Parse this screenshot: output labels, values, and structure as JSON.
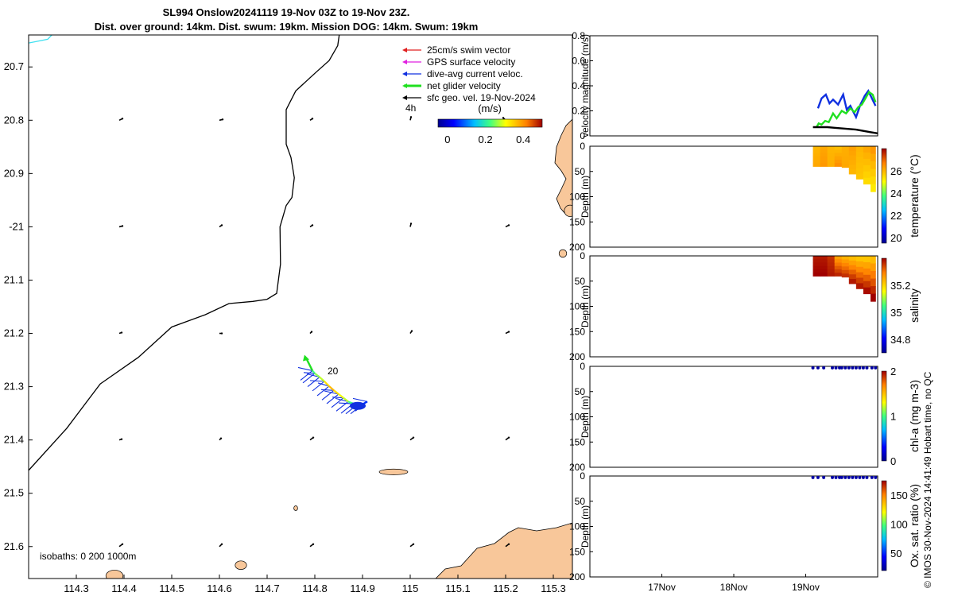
{
  "title": {
    "line1": "SL994 Onslow20241119 19-Nov 03Z to 19-Nov 23Z.",
    "line2": "Dist. over ground: 14km. Dist. swum: 19km. Mission DOG: 14km. Swum: 19km"
  },
  "credit": "© IMOS 30-Nov-2024 14:41:49 Hobart time, no QC",
  "colors": {
    "land": "#f8c79a",
    "coast": "#000000",
    "isobath_cyan": "#3fe0f0",
    "swim": "#e02020",
    "gps": "#e020e0",
    "dive_avg": "#1030e0",
    "net": "#20e020",
    "geo": "#000000"
  },
  "map": {
    "legend": [
      {
        "label": "25cm/s swim vector",
        "color": "#e02020"
      },
      {
        "label": "GPS surface velocity",
        "color": "#e020e0"
      },
      {
        "label": "dive-avg current veloc.",
        "color": "#1030e0"
      },
      {
        "label": "net glider velocity",
        "color": "#20e020"
      },
      {
        "label": "sfc geo. vel. 19-Nov-2024",
        "color": "#000000"
      }
    ],
    "scale_label": "4h",
    "colorbar": {
      "title": "(m/s)",
      "ticks": [
        "0",
        "0.2",
        "0.4"
      ],
      "range": [
        -0.05,
        0.5
      ]
    },
    "track_label": "20",
    "isobaths_label": "isobaths: 0   200  1000m",
    "coast_line": [
      [
        114.2,
        -21.457
      ],
      [
        114.28,
        -21.378
      ],
      [
        114.35,
        -21.295
      ],
      [
        114.43,
        -21.245
      ],
      [
        114.5,
        -21.188
      ],
      [
        114.57,
        -21.165
      ],
      [
        114.62,
        -21.144
      ],
      [
        114.67,
        -21.14
      ],
      [
        114.7,
        -21.136
      ],
      [
        114.72,
        -21.125
      ],
      [
        114.728,
        -21.07
      ],
      [
        114.727,
        -21.0
      ],
      [
        114.74,
        -20.96
      ],
      [
        114.752,
        -20.945
      ],
      [
        114.757,
        -20.908
      ],
      [
        114.75,
        -20.87
      ],
      [
        114.74,
        -20.845
      ],
      [
        114.74,
        -20.78
      ],
      [
        114.76,
        -20.745
      ],
      [
        114.8,
        -20.712
      ],
      [
        114.83,
        -20.688
      ],
      [
        114.848,
        -20.66
      ],
      [
        114.852,
        -20.635
      ]
    ],
    "cyan_line": [
      [
        114.2,
        -20.655
      ],
      [
        114.24,
        -20.648
      ],
      [
        114.27,
        -20.62
      ]
    ],
    "islands": [
      {
        "cx": 114.965,
        "cy": -21.46,
        "rx": 0.03,
        "ry": 0.006
      },
      {
        "cx": 114.38,
        "cy": -21.655,
        "rx": 0.018,
        "ry": 0.012
      },
      {
        "cx": 114.645,
        "cy": -21.635,
        "rx": 0.012,
        "ry": 0.009
      },
      {
        "cx": 114.76,
        "cy": -21.528,
        "rx": 0.004,
        "ry": 0.005
      },
      {
        "cx": 115.335,
        "cy": -20.97,
        "rx": 0.012,
        "ry": 0.012
      },
      {
        "cx": 115.32,
        "cy": -21.05,
        "rx": 0.008,
        "ry": 0.008
      }
    ],
    "geo_arrows": [
      {
        "lon": 114.39,
        "lat": -20.8,
        "u": 0.4,
        "v": 0.2
      },
      {
        "lon": 114.6,
        "lat": -20.8,
        "u": 0.4,
        "v": 0.1
      },
      {
        "lon": 114.79,
        "lat": -20.8,
        "u": 0.3,
        "v": 0.2
      },
      {
        "lon": 115.0,
        "lat": -20.8,
        "u": 0.1,
        "v": 0.4
      },
      {
        "lon": 115.2,
        "lat": -20.8,
        "u": -0.3,
        "v": 0.3
      },
      {
        "lon": 114.39,
        "lat": -21.0,
        "u": 0.4,
        "v": 0.1
      },
      {
        "lon": 114.6,
        "lat": -21.0,
        "u": 0.3,
        "v": 0.2
      },
      {
        "lon": 114.79,
        "lat": -21.0,
        "u": 0.3,
        "v": 0.2
      },
      {
        "lon": 115.0,
        "lat": -21.0,
        "u": 0.1,
        "v": 0.4
      },
      {
        "lon": 115.2,
        "lat": -21.0,
        "u": 0.4,
        "v": 0.2
      },
      {
        "lon": 114.39,
        "lat": -21.2,
        "u": 0.3,
        "v": 0.1
      },
      {
        "lon": 114.6,
        "lat": -21.2,
        "u": 0.3,
        "v": 0.0
      },
      {
        "lon": 114.79,
        "lat": -21.2,
        "u": 0.2,
        "v": 0.2
      },
      {
        "lon": 115.0,
        "lat": -21.2,
        "u": 0.2,
        "v": 0.3
      },
      {
        "lon": 115.2,
        "lat": -21.2,
        "u": 0.4,
        "v": 0.2
      },
      {
        "lon": 114.39,
        "lat": -21.4,
        "u": 0.3,
        "v": 0.1
      },
      {
        "lon": 114.6,
        "lat": -21.4,
        "u": 0.2,
        "v": 0.2
      },
      {
        "lon": 114.79,
        "lat": -21.4,
        "u": 0.4,
        "v": 0.3
      },
      {
        "lon": 115.0,
        "lat": -21.4,
        "u": 0.4,
        "v": 0.3
      },
      {
        "lon": 115.2,
        "lat": -21.4,
        "u": 0.4,
        "v": 0.3
      },
      {
        "lon": 114.39,
        "lat": -21.6,
        "u": 0.4,
        "v": 0.3
      },
      {
        "lon": 114.6,
        "lat": -21.6,
        "u": 0.3,
        "v": 0.3
      },
      {
        "lon": 114.79,
        "lat": -21.6,
        "u": 0.4,
        "v": 0.3
      },
      {
        "lon": 115.0,
        "lat": -21.6,
        "u": 0.4,
        "v": 0.3
      },
      {
        "lon": 115.2,
        "lat": -21.6,
        "u": 0.4,
        "v": 0.3
      }
    ]
  },
  "chart_data": [
    {
      "type": "scatter",
      "name": "glider-track-map",
      "xlim": [
        114.2,
        115.34
      ],
      "ylim": [
        -21.66,
        -20.64
      ],
      "x_ticks": [
        114.3,
        114.4,
        114.5,
        114.6,
        114.7,
        114.8,
        114.9,
        115.0,
        115.1,
        115.2,
        115.3
      ],
      "x_tick_labels": [
        "114.3",
        "114.4",
        "114.5",
        "114.6",
        "114.7",
        "114.8",
        "114.9",
        "115",
        "115.1",
        "115.2",
        "115.3"
      ],
      "y_ticks": [
        -20.7,
        -20.8,
        -20.9,
        -21.0,
        -21.1,
        -21.2,
        -21.3,
        -21.4,
        -21.5,
        -21.6
      ],
      "y_tick_labels": [
        "20.7",
        "20.8",
        "20.9",
        "-21",
        "21.1",
        "21.2",
        "21.3",
        "21.4",
        "21.5",
        "21.6"
      ],
      "track": {
        "lon": [
          114.91,
          114.9,
          114.89,
          114.88,
          114.87,
          114.86,
          114.85,
          114.84,
          114.83,
          114.82,
          114.81,
          114.8,
          114.795
        ],
        "lat": [
          -21.328,
          -21.333,
          -21.333,
          -21.332,
          -21.328,
          -21.321,
          -21.314,
          -21.307,
          -21.299,
          -21.29,
          -21.282,
          -21.275,
          -21.27
        ],
        "speed": [
          0.1,
          0.12,
          0.18,
          0.25,
          0.3,
          0.32,
          0.35,
          0.38,
          0.35,
          0.3,
          0.28,
          0.25,
          0.22
        ]
      }
    },
    {
      "type": "line",
      "name": "velocity-magnitude",
      "ylabel": "velocity magnitude (m/s)",
      "ylim": [
        0,
        0.8
      ],
      "y_ticks": [
        0,
        0.2,
        0.4,
        0.6,
        0.8
      ],
      "xlim": [
        16.0,
        20.0
      ],
      "series": [
        {
          "color": "#1030e0",
          "x": [
            19.17,
            19.22,
            19.28,
            19.33,
            19.38,
            19.45,
            19.52,
            19.57,
            19.62,
            19.7,
            19.76,
            19.82,
            19.87,
            19.92,
            19.97
          ],
          "values": [
            0.22,
            0.3,
            0.33,
            0.26,
            0.29,
            0.25,
            0.33,
            0.21,
            0.24,
            0.15,
            0.25,
            0.32,
            0.36,
            0.3,
            0.24
          ]
        },
        {
          "color": "#20e020",
          "x": [
            19.15,
            19.18,
            19.22,
            19.27,
            19.32,
            19.38,
            19.43,
            19.5,
            19.56,
            19.62,
            19.68,
            19.73,
            19.78,
            19.83,
            19.88,
            19.93,
            19.97
          ],
          "values": [
            0.07,
            0.1,
            0.09,
            0.12,
            0.11,
            0.18,
            0.14,
            0.2,
            0.18,
            0.22,
            0.19,
            0.23,
            0.25,
            0.3,
            0.35,
            0.33,
            0.27
          ]
        },
        {
          "color": "#000000",
          "x": [
            19.1,
            19.2,
            19.3,
            19.4,
            19.5,
            19.6,
            19.7,
            19.8,
            19.9,
            20.0
          ],
          "values": [
            0.07,
            0.07,
            0.07,
            0.065,
            0.06,
            0.055,
            0.05,
            0.04,
            0.03,
            0.02
          ]
        }
      ]
    },
    {
      "type": "heatmap",
      "name": "temperature-section",
      "ylabel": "Depth (m)",
      "clabel": "temperature (°C)",
      "ylim": [
        200,
        0
      ],
      "y_ticks": [
        0,
        50,
        100,
        150,
        200
      ],
      "clim": [
        19.5,
        28
      ],
      "c_ticks": [
        20,
        22,
        24,
        26
      ],
      "x_day": [
        19.1,
        19.2,
        19.3,
        19.4,
        19.5,
        19.6,
        19.7,
        19.8,
        19.9,
        19.97
      ],
      "max_depth": [
        40,
        40,
        40,
        40,
        42,
        55,
        65,
        75,
        90,
        98
      ],
      "value_surface": [
        26.0,
        26.2,
        26.0,
        25.9,
        26.1,
        26.3,
        26.0,
        26.2,
        26.4,
        26.5
      ],
      "value_deep": [
        26.2,
        26.4,
        26.1,
        26.5,
        26.2,
        26.0,
        25.8,
        25.5,
        25.3,
        25.2
      ]
    },
    {
      "type": "heatmap",
      "name": "salinity-section",
      "ylabel": "Depth (m)",
      "clabel": "salinity",
      "ylim": [
        200,
        0
      ],
      "y_ticks": [
        0,
        50,
        100,
        150,
        200
      ],
      "clim": [
        34.7,
        35.4
      ],
      "c_ticks": [
        34.8,
        35,
        35.2
      ],
      "x_day": [
        19.1,
        19.2,
        19.3,
        19.4,
        19.5,
        19.6,
        19.7,
        19.8,
        19.9,
        19.97
      ],
      "max_depth": [
        40,
        40,
        40,
        40,
        42,
        55,
        65,
        75,
        90,
        98
      ],
      "value_surface": [
        35.38,
        35.38,
        35.36,
        35.26,
        35.24,
        35.23,
        35.22,
        35.22,
        35.23,
        35.24
      ],
      "value_deep": [
        35.4,
        35.4,
        35.38,
        35.37,
        35.36,
        35.38,
        35.38,
        35.39,
        35.4,
        35.4
      ]
    },
    {
      "type": "scatter",
      "name": "chl-a-section",
      "ylabel": "Depth (m)",
      "clabel": "chl-a (mg m-3)",
      "ylim": [
        200,
        0
      ],
      "y_ticks": [
        0,
        50,
        100,
        150,
        200
      ],
      "clim": [
        0,
        2
      ],
      "c_ticks": [
        0,
        1,
        2
      ],
      "x_day": [
        19.1,
        19.17,
        19.25,
        19.37,
        19.42,
        19.47,
        19.5,
        19.55,
        19.6,
        19.65,
        19.7,
        19.75,
        19.8,
        19.85,
        19.92,
        19.97
      ],
      "depth": [
        3,
        3,
        3,
        3,
        3,
        3,
        3,
        3,
        3,
        3,
        3,
        3,
        3,
        3,
        3,
        3
      ],
      "values": [
        0.05,
        0.05,
        0.05,
        0.05,
        0.05,
        0.05,
        0.05,
        0.05,
        0.05,
        0.05,
        0.05,
        0.05,
        0.05,
        0.05,
        0.05,
        0.05
      ]
    },
    {
      "type": "scatter",
      "name": "oxygen-section",
      "ylabel": "Depth (m)",
      "clabel": "Ox. sat. ratio (%)",
      "ylim": [
        200,
        0
      ],
      "y_ticks": [
        0,
        50,
        100,
        150,
        200
      ],
      "clim": [
        20,
        175
      ],
      "c_ticks": [
        50,
        100,
        150
      ],
      "x_day": [
        19.1,
        19.17,
        19.25,
        19.37,
        19.42,
        19.47,
        19.5,
        19.55,
        19.6,
        19.65,
        19.7,
        19.75,
        19.8,
        19.85,
        19.92,
        19.97
      ],
      "depth": [
        3,
        3,
        3,
        3,
        3,
        3,
        3,
        3,
        3,
        3,
        3,
        3,
        3,
        3,
        3,
        3
      ],
      "values": [
        25,
        25,
        25,
        25,
        25,
        25,
        25,
        25,
        25,
        25,
        25,
        25,
        25,
        25,
        25,
        25
      ]
    }
  ],
  "time_axis": {
    "ticks": [
      17,
      18,
      19
    ],
    "labels": [
      "17Nov",
      "18Nov",
      "19Nov"
    ]
  }
}
